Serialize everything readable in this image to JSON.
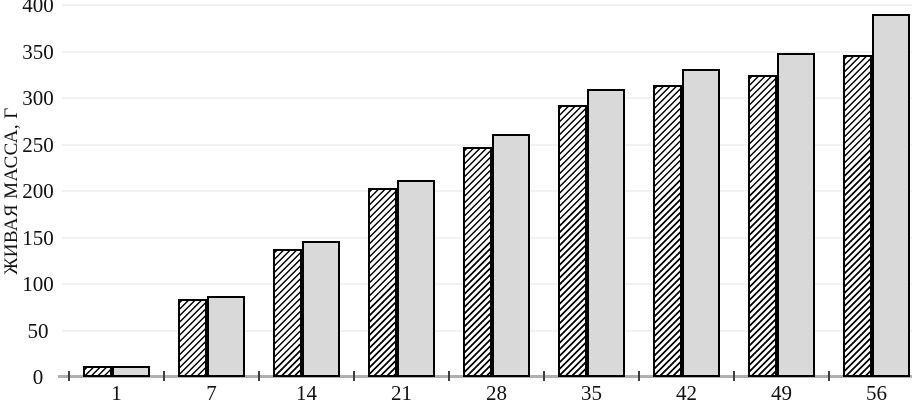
{
  "chart_data": {
    "type": "bar",
    "title": "",
    "xlabel": "",
    "ylabel": "ЖИВАЯ МАССА, Г",
    "categories": [
      "1",
      "7",
      "14",
      "21",
      "28",
      "35",
      "42",
      "49",
      "56"
    ],
    "series": [
      {
        "id": "series-1-hatched",
        "style": "black-diagonal-hatch-on-white",
        "values": [
          12,
          84,
          138,
          203,
          247,
          293,
          314,
          325,
          346
        ]
      },
      {
        "id": "series-2-gray",
        "style": "solid-light-gray",
        "values": [
          12,
          87,
          146,
          212,
          261,
          310,
          331,
          348,
          390
        ]
      }
    ],
    "ylim": [
      0,
      400
    ],
    "yticks": [
      0,
      50,
      100,
      150,
      200,
      250,
      300,
      350,
      400
    ],
    "grid": "horizontal-light",
    "legend": "none"
  },
  "colors": {
    "background": "#ffffff",
    "bar_gray_fill": "#d9d9d9",
    "bar_outline": "#000000",
    "gridline": "#f2f2f2",
    "axis_line": "#b0b0b0",
    "tick_mark": "#3f3f3f",
    "text": "#111111"
  }
}
